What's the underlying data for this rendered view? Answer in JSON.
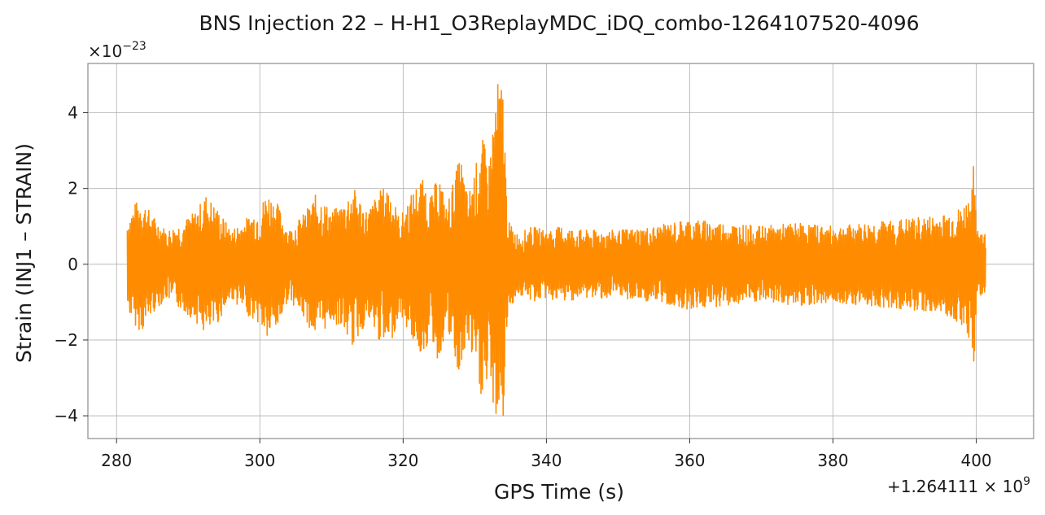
{
  "chart_data": {
    "type": "line",
    "title": "BNS Injection 22 – H-H1_O3ReplayMDC_iDQ_combo-1264107520-4096",
    "xlabel": "GPS Time (s)",
    "ylabel": "Strain (INJ1 – STRAIN)",
    "x_offset_label": "+1.264111 × 10",
    "x_offset_exponent": "9",
    "y_scale_label": "×10",
    "y_scale_exponent": "−23",
    "xlim": [
      276,
      408
    ],
    "ylim": [
      -4.6,
      5.3
    ],
    "x_ticks": [
      280,
      300,
      320,
      340,
      360,
      380,
      400
    ],
    "x_tick_labels": [
      "280",
      "300",
      "320",
      "340",
      "360",
      "380",
      "400"
    ],
    "y_ticks": [
      -4,
      -2,
      0,
      2,
      4
    ],
    "y_tick_labels": [
      "−4",
      "−2",
      "0",
      "2",
      "4"
    ],
    "grid": true,
    "line_color": "#ff8c00",
    "series": [
      {
        "envelope": {
          "x": [
            281.5,
            282.5,
            283.5,
            285,
            287,
            289,
            291,
            292.5,
            294,
            296,
            298,
            300,
            301,
            302.5,
            304,
            306,
            308,
            310,
            311.5,
            313,
            315,
            316.5,
            318,
            319.5,
            321,
            322.5,
            324,
            325,
            326,
            327,
            328,
            329,
            330,
            331,
            332,
            333,
            334,
            334.4,
            334.8,
            336,
            338,
            340,
            342,
            345,
            350,
            355,
            360,
            365,
            370,
            375,
            380,
            385,
            390,
            395,
            398,
            399.3,
            399.6,
            400,
            401.3
          ],
          "upper": [
            1.2,
            1.6,
            1.75,
            1.3,
            0.9,
            1.1,
            1.4,
            1.85,
            1.5,
            0.9,
            1.2,
            1.5,
            1.95,
            1.6,
            0.9,
            1.3,
            1.9,
            1.4,
            1.6,
            2.05,
            1.4,
            1.9,
            2.15,
            1.2,
            1.8,
            2.3,
            1.8,
            2.5,
            1.5,
            2.2,
            2.9,
            1.8,
            2.5,
            3.4,
            2.7,
            4.8,
            4.85,
            2.0,
            1.1,
            0.8,
            1.0,
            0.9,
            1.0,
            0.9,
            0.9,
            1.0,
            1.2,
            1.1,
            1.0,
            1.1,
            1.0,
            1.1,
            1.2,
            1.3,
            1.5,
            1.9,
            2.6,
            1.1,
            0.8
          ],
          "lower": [
            -1.2,
            -1.6,
            -1.8,
            -1.3,
            -0.9,
            -1.2,
            -1.5,
            -1.9,
            -1.6,
            -0.9,
            -1.3,
            -1.6,
            -2.0,
            -1.7,
            -0.9,
            -1.4,
            -2.0,
            -1.5,
            -1.7,
            -2.2,
            -1.5,
            -2.0,
            -2.3,
            -1.3,
            -1.9,
            -2.4,
            -2.0,
            -2.7,
            -1.6,
            -2.5,
            -3.1,
            -2.0,
            -2.9,
            -3.6,
            -3.3,
            -4.1,
            -4.15,
            -2.0,
            -1.2,
            -0.8,
            -1.0,
            -0.9,
            -1.0,
            -0.9,
            -0.9,
            -1.0,
            -1.2,
            -1.1,
            -1.0,
            -1.1,
            -1.0,
            -1.1,
            -1.2,
            -1.3,
            -1.6,
            -2.2,
            -3.1,
            -1.1,
            -0.7
          ]
        }
      }
    ]
  }
}
